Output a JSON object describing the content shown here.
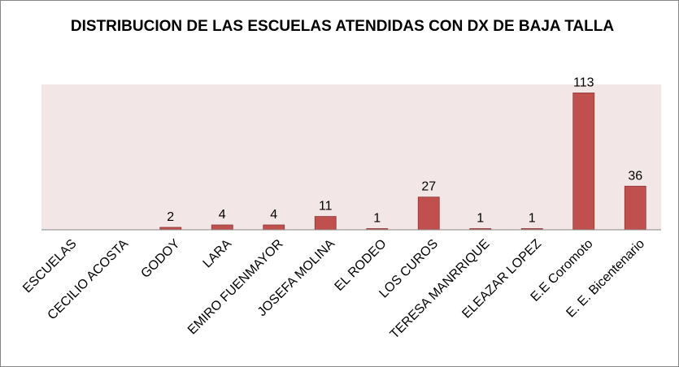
{
  "chart_data": {
    "type": "bar",
    "title": "DISTRIBUCION DE LAS ESCUELAS ATENDIDAS CON DX DE BAJA TALLA",
    "categories": [
      "ESCUELAS",
      "CECILIO ACOSTA",
      "GODOY",
      "LARA",
      "EMIRO FUENMAYOR",
      "JOSEFA MOLINA",
      "EL RODEO",
      "LOS CUROS",
      "TERESA MANRRIQUE",
      "ELEAZAR LOPEZ",
      "E.E Coromoto",
      "E. E. Bicentenario"
    ],
    "values": [
      null,
      null,
      2,
      4,
      4,
      11,
      1,
      27,
      1,
      1,
      113,
      36
    ],
    "data_labels": [
      "",
      "",
      "2",
      "4",
      "4",
      "11",
      "1",
      "27",
      "1",
      "1",
      "113",
      "36"
    ],
    "ylim": [
      0,
      120
    ],
    "grid": false,
    "legend": "none",
    "colors": {
      "bar_fill": "#C0504D",
      "bar_stroke": "#8C3836",
      "plot_background": "#F2E6E6",
      "axis": "#868686"
    }
  }
}
